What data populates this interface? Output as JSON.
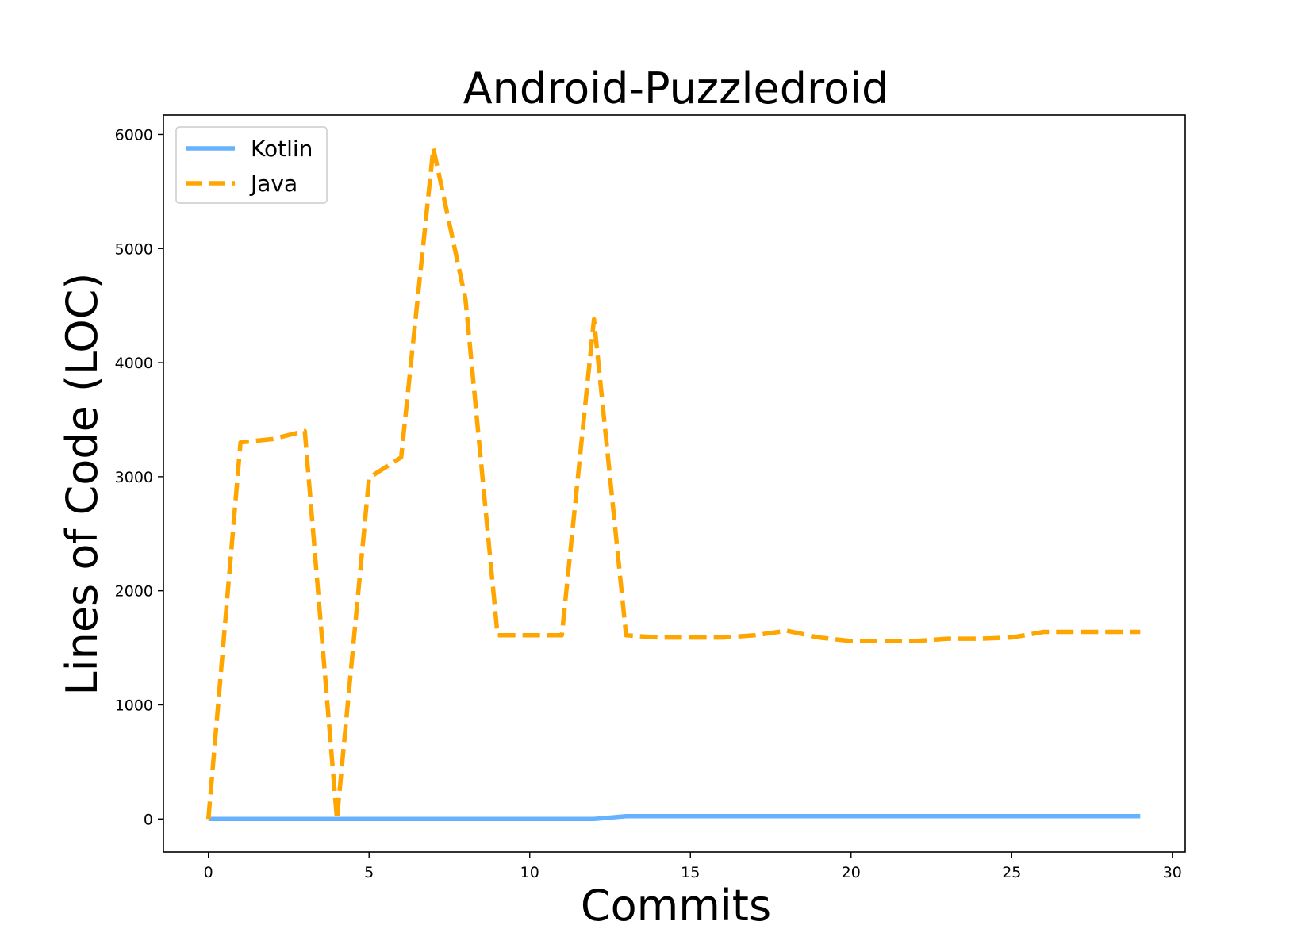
{
  "chart_data": {
    "type": "line",
    "title": "Android-Puzzledroid",
    "xlabel": "Commits",
    "ylabel": "Lines of Code (LOC)",
    "xlim": [
      -1.4,
      30.4
    ],
    "ylim": [
      -290,
      6170
    ],
    "xticks": [
      0,
      5,
      10,
      15,
      20,
      25,
      30
    ],
    "yticks": [
      0,
      1000,
      2000,
      3000,
      4000,
      5000,
      6000
    ],
    "grid": false,
    "legend_position": "top-left",
    "x": [
      0,
      1,
      2,
      3,
      4,
      5,
      6,
      7,
      8,
      9,
      10,
      11,
      12,
      13,
      14,
      15,
      16,
      17,
      18,
      19,
      20,
      21,
      22,
      23,
      24,
      25,
      26,
      27,
      28,
      29
    ],
    "series": [
      {
        "name": "Kotlin",
        "color": "#66b2ff",
        "style": "solid",
        "values": [
          0,
          0,
          0,
          0,
          0,
          0,
          0,
          0,
          0,
          0,
          0,
          0,
          0,
          24,
          24,
          24,
          24,
          24,
          24,
          24,
          24,
          24,
          24,
          24,
          24,
          24,
          24,
          24,
          24,
          24
        ]
      },
      {
        "name": "Java",
        "color": "#ffa500",
        "style": "dashed",
        "values": [
          0,
          3300,
          3330,
          3400,
          0,
          2990,
          3170,
          5880,
          4560,
          1610,
          1610,
          1610,
          4380,
          1610,
          1590,
          1590,
          1590,
          1610,
          1650,
          1590,
          1560,
          1560,
          1560,
          1580,
          1580,
          1590,
          1640,
          1640,
          1640,
          1640
        ]
      }
    ]
  }
}
